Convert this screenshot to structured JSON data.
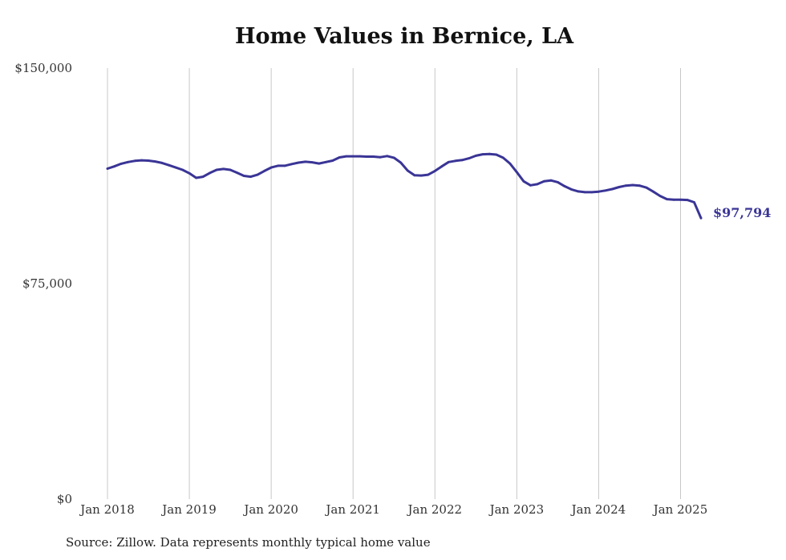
{
  "title": "Home Values in Bernice, LA",
  "source": "Source: Zillow. Data represents monthly typical home value",
  "colors": {
    "line": "#3a3596",
    "grid": "#c8c8c8",
    "text": "#333333"
  },
  "chart_data": {
    "type": "line",
    "title": "Home Values in Bernice, LA",
    "xlabel": "",
    "ylabel": "",
    "ylim": [
      0,
      150000
    ],
    "xlim": [
      "2018-01",
      "2025-04"
    ],
    "grid": {
      "vertical": true,
      "horizontal": false
    },
    "yticks": [
      {
        "value": 0,
        "label": "$0"
      },
      {
        "value": 75000,
        "label": "$75,000"
      },
      {
        "value": 150000,
        "label": "$150,000"
      }
    ],
    "xticks": [
      {
        "value": "2018-01",
        "label": "Jan 2018"
      },
      {
        "value": "2019-01",
        "label": "Jan 2019"
      },
      {
        "value": "2020-01",
        "label": "Jan 2020"
      },
      {
        "value": "2021-01",
        "label": "Jan 2021"
      },
      {
        "value": "2022-01",
        "label": "Jan 2022"
      },
      {
        "value": "2023-01",
        "label": "Jan 2023"
      },
      {
        "value": "2024-01",
        "label": "Jan 2024"
      },
      {
        "value": "2025-01",
        "label": "Jan 2025"
      }
    ],
    "end_label": "$97,794",
    "series": [
      {
        "x": [
          "2018-01",
          "2018-02",
          "2018-03",
          "2018-04",
          "2018-05",
          "2018-06",
          "2018-07",
          "2018-08",
          "2018-09",
          "2018-10",
          "2018-11",
          "2018-12",
          "2019-01",
          "2019-02",
          "2019-03",
          "2019-04",
          "2019-05",
          "2019-06",
          "2019-07",
          "2019-08",
          "2019-09",
          "2019-10",
          "2019-11",
          "2019-12",
          "2020-01",
          "2020-02",
          "2020-03",
          "2020-04",
          "2020-05",
          "2020-06",
          "2020-07",
          "2020-08",
          "2020-09",
          "2020-10",
          "2020-11",
          "2020-12",
          "2021-01",
          "2021-02",
          "2021-03",
          "2021-04",
          "2021-05",
          "2021-06",
          "2021-07",
          "2021-08",
          "2021-09",
          "2021-10",
          "2021-11",
          "2021-12",
          "2022-01",
          "2022-02",
          "2022-03",
          "2022-04",
          "2022-05",
          "2022-06",
          "2022-07",
          "2022-08",
          "2022-09",
          "2022-10",
          "2022-11",
          "2022-12",
          "2023-01",
          "2023-02",
          "2023-03",
          "2023-04",
          "2023-05",
          "2023-06",
          "2023-07",
          "2023-08",
          "2023-09",
          "2023-10",
          "2023-11",
          "2023-12",
          "2024-01",
          "2024-02",
          "2024-03",
          "2024-04",
          "2024-05",
          "2024-06",
          "2024-07",
          "2024-08",
          "2024-09",
          "2024-10",
          "2024-11",
          "2024-12",
          "2025-01",
          "2025-02",
          "2025-03",
          "2025-04"
        ],
        "values": [
          115000,
          115800,
          116700,
          117300,
          117700,
          117900,
          117800,
          117500,
          117000,
          116200,
          115400,
          114600,
          113400,
          111800,
          112200,
          113500,
          114600,
          114900,
          114600,
          113600,
          112500,
          112200,
          112900,
          114200,
          115400,
          116000,
          116000,
          116600,
          117100,
          117400,
          117200,
          116800,
          117300,
          117800,
          118900,
          119300,
          119300,
          119300,
          119200,
          119200,
          119000,
          119400,
          118800,
          117100,
          114300,
          112700,
          112600,
          112900,
          114200,
          115800,
          117300,
          117700,
          118000,
          118600,
          119500,
          120000,
          120100,
          119900,
          118800,
          116800,
          113800,
          110600,
          109200,
          109600,
          110600,
          110900,
          110300,
          108900,
          107800,
          107100,
          106800,
          106800,
          107000,
          107400,
          107900,
          108600,
          109100,
          109300,
          109100,
          108400,
          107000,
          105500,
          104400,
          104200,
          104200,
          104100,
          103300,
          97794
        ]
      }
    ]
  }
}
